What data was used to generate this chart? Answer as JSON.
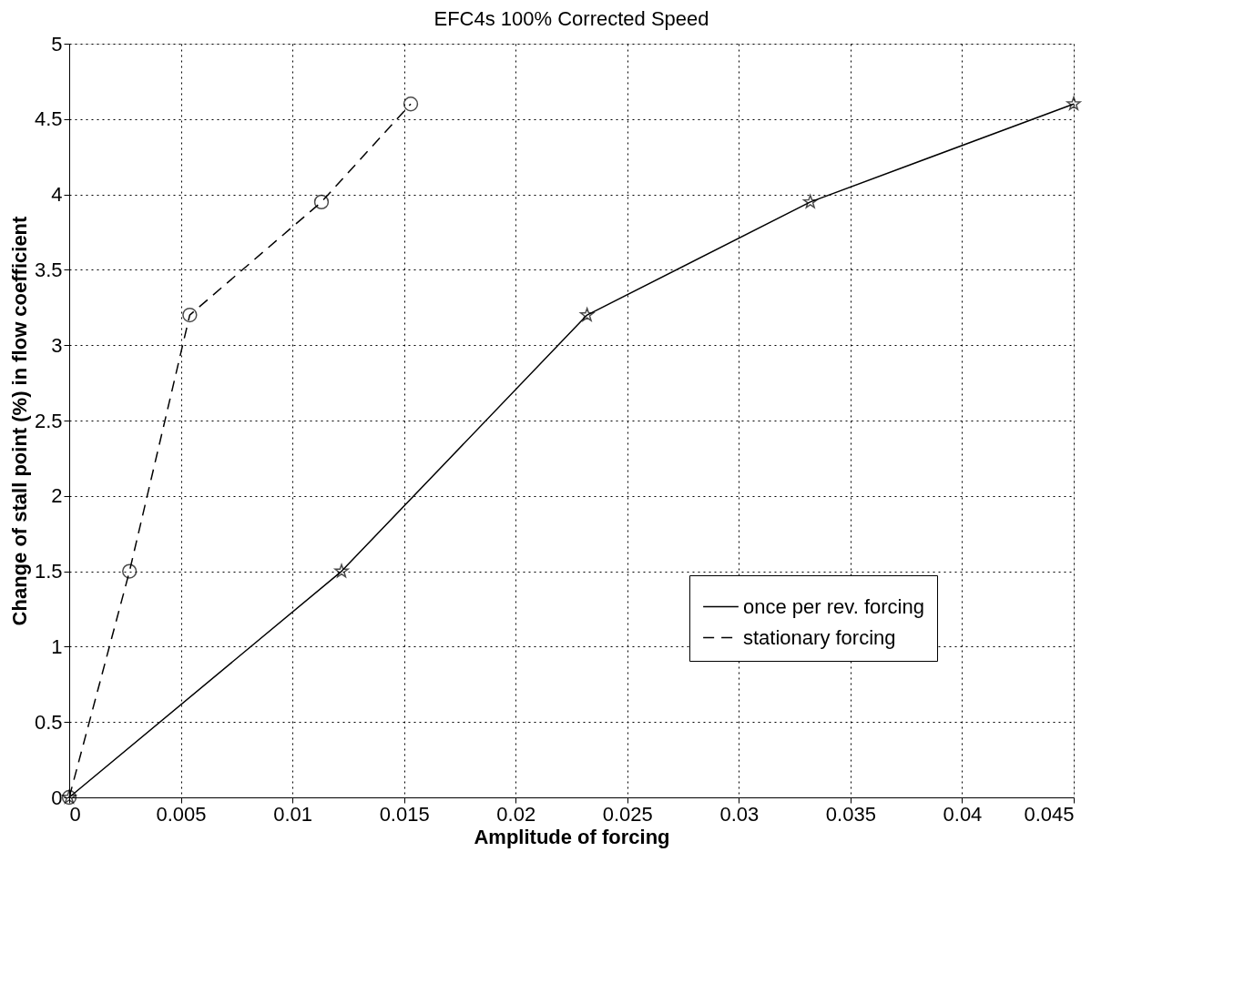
{
  "chart_data": {
    "type": "line",
    "title": "EFC4s 100% Corrected Speed",
    "xlabel": "Amplitude of forcing",
    "ylabel": "Change of stall point (%) in flow coefficient",
    "xlim": [
      0,
      0.045
    ],
    "ylim": [
      0,
      5
    ],
    "xticks": [
      0,
      0.005,
      0.01,
      0.015,
      0.02,
      0.025,
      0.03,
      0.035,
      0.04,
      0.045
    ],
    "yticks": [
      0,
      0.5,
      1,
      1.5,
      2,
      2.5,
      3,
      3.5,
      4,
      4.5,
      5
    ],
    "grid": true,
    "legend": "bottom right",
    "series": [
      {
        "name": "once per rev. forcing",
        "color": "#000000",
        "line_style": "solid",
        "marker": "star",
        "x": [
          0,
          0.0122,
          0.0232,
          0.0332,
          0.045
        ],
        "values": [
          0,
          1.5,
          3.2,
          3.95,
          4.6
        ]
      },
      {
        "name": "stationary forcing",
        "color": "#000000",
        "line_style": "dashed",
        "marker": "circle",
        "x": [
          0,
          0.0027,
          0.0054,
          0.0113,
          0.0153
        ],
        "values": [
          0,
          1.5,
          3.2,
          3.95,
          4.6
        ]
      }
    ]
  }
}
